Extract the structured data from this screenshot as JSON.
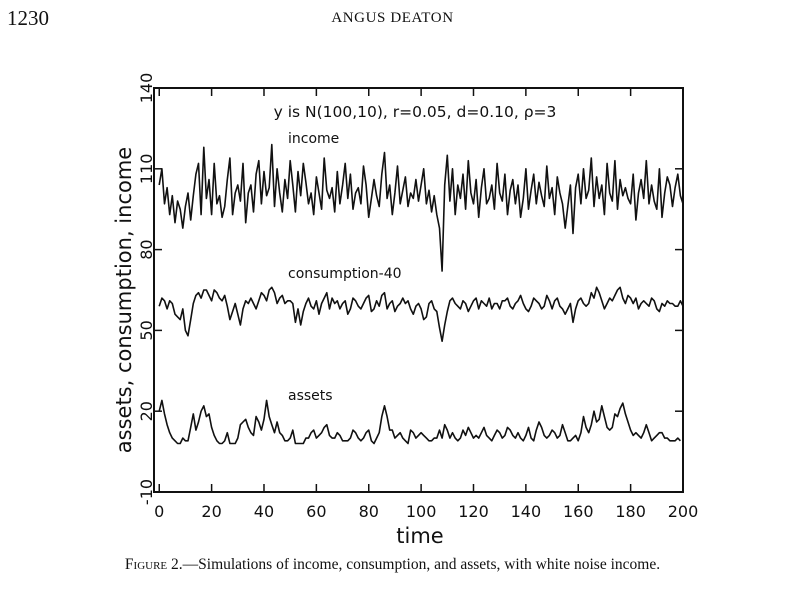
{
  "header": {
    "page_number": "1230",
    "running_head": "ANGUS DEATON"
  },
  "caption": {
    "label": "Figure 2.",
    "text": "—Simulations of income, consumption, and assets, with white noise income."
  },
  "chart_data": {
    "type": "line",
    "title": "y is N(100,10), r=0.05, d=0.10, ρ=3",
    "xlabel": "time",
    "ylabel": "assets, consumption, income",
    "xlim": [
      -2,
      200
    ],
    "ylim": [
      -10,
      140
    ],
    "x_ticks": [
      0,
      20,
      40,
      60,
      80,
      100,
      120,
      140,
      160,
      180,
      200
    ],
    "y_ticks": [
      -10,
      20,
      50,
      80,
      110,
      140
    ],
    "grid": false,
    "series": [
      {
        "name": "income",
        "label": "income",
        "values": [
          104,
          110,
          97,
          103,
          93,
          100,
          90,
          98,
          95,
          88,
          96,
          101,
          91,
          100,
          108,
          112,
          93,
          118,
          99,
          106,
          93,
          112,
          97,
          100,
          92,
          96,
          106,
          114,
          93,
          101,
          104,
          98,
          112,
          90,
          101,
          104,
          94,
          108,
          113,
          97,
          109,
          100,
          103,
          119,
          96,
          110,
          101,
          94,
          106,
          99,
          113,
          104,
          94,
          109,
          100,
          112,
          105,
          97,
          101,
          93,
          107,
          101,
          95,
          114,
          102,
          99,
          103,
          94,
          109,
          97,
          104,
          112,
          99,
          108,
          95,
          101,
          103,
          97,
          111,
          104,
          92,
          99,
          106,
          100,
          96,
          108,
          116,
          99,
          104,
          93,
          101,
          111,
          97,
          102,
          107,
          96,
          101,
          99,
          106,
          98,
          104,
          110,
          97,
          102,
          94,
          100,
          93,
          88,
          72,
          104,
          115,
          98,
          110,
          93,
          104,
          99,
          108,
          95,
          113,
          101,
          97,
          106,
          92,
          103,
          110,
          97,
          99,
          104,
          95,
          112,
          101,
          98,
          108,
          93,
          102,
          106,
          97,
          104,
          92,
          99,
          110,
          95,
          102,
          108,
          97,
          105,
          100,
          96,
          111,
          99,
          103,
          93,
          107,
          101,
          97,
          88,
          96,
          104,
          86,
          103,
          108,
          97,
          110,
          99,
          102,
          114,
          96,
          107,
          99,
          104,
          93,
          112,
          101,
          98,
          113,
          95,
          106,
          100,
          103,
          99,
          97,
          108,
          91,
          101,
          106,
          99,
          113,
          97,
          104,
          98,
          95,
          110,
          92,
          101,
          107,
          104,
          96,
          103,
          108,
          100,
          97
        ]
      },
      {
        "name": "consumption-40",
        "label": "consumption-40",
        "values": [
          59,
          62,
          61,
          58,
          61,
          60,
          56,
          55,
          54,
          58,
          50,
          48,
          54,
          60,
          63,
          64,
          62,
          65,
          65,
          63,
          61,
          65,
          64,
          62,
          61,
          63,
          59,
          54,
          57,
          60,
          56,
          52,
          58,
          61,
          60,
          62,
          60,
          58,
          61,
          64,
          63,
          61,
          65,
          66,
          64,
          60,
          62,
          63,
          60,
          61,
          61,
          60,
          53,
          58,
          52,
          57,
          60,
          62,
          59,
          58,
          61,
          56,
          60,
          62,
          64,
          58,
          62,
          60,
          61,
          58,
          60,
          61,
          56,
          58,
          62,
          61,
          59,
          58,
          60,
          62,
          63,
          57,
          58,
          61,
          59,
          63,
          64,
          58,
          60,
          61,
          57,
          59,
          60,
          62,
          60,
          61,
          58,
          56,
          59,
          60,
          58,
          54,
          55,
          60,
          61,
          58,
          57,
          51,
          46,
          52,
          57,
          61,
          62,
          60,
          59,
          58,
          61,
          60,
          57,
          59,
          61,
          62,
          58,
          61,
          60,
          59,
          62,
          58,
          60,
          60,
          58,
          61,
          61,
          62,
          59,
          58,
          60,
          61,
          63,
          60,
          58,
          57,
          59,
          62,
          61,
          60,
          58,
          59,
          63,
          61,
          58,
          61,
          62,
          59,
          58,
          56,
          58,
          60,
          53,
          58,
          61,
          62,
          60,
          59,
          60,
          64,
          62,
          66,
          64,
          61,
          58,
          60,
          62,
          61,
          63,
          65,
          66,
          62,
          60,
          63,
          62,
          60,
          62,
          58,
          60,
          61,
          60,
          59,
          62,
          61,
          58,
          57,
          60,
          59,
          61,
          60,
          60,
          59,
          59,
          61,
          59
        ]
      },
      {
        "name": "assets",
        "label": "assets",
        "values": [
          20,
          24,
          19,
          15,
          12,
          10,
          9,
          8,
          8,
          10,
          9,
          9,
          14,
          19,
          13,
          16,
          20,
          22,
          18,
          19,
          14,
          11,
          9,
          8,
          8,
          9,
          12,
          8,
          8,
          8,
          10,
          15,
          16,
          17,
          14,
          12,
          11,
          18,
          16,
          13,
          17,
          24,
          18,
          15,
          12,
          16,
          12,
          11,
          9,
          9,
          10,
          13,
          8,
          8,
          8,
          8,
          10,
          10,
          12,
          13,
          10,
          11,
          12,
          14,
          15,
          11,
          10,
          10,
          12,
          11,
          9,
          9,
          9,
          10,
          13,
          12,
          10,
          9,
          10,
          12,
          13,
          9,
          8,
          10,
          12,
          18,
          22,
          18,
          13,
          13,
          10,
          11,
          12,
          10,
          9,
          8,
          13,
          12,
          10,
          11,
          12,
          11,
          10,
          9,
          9,
          10,
          10,
          13,
          10,
          15,
          13,
          10,
          12,
          10,
          9,
          10,
          13,
          11,
          14,
          12,
          10,
          11,
          10,
          12,
          14,
          11,
          10,
          9,
          11,
          13,
          12,
          10,
          11,
          14,
          13,
          11,
          10,
          12,
          10,
          9,
          11,
          14,
          10,
          9,
          13,
          16,
          14,
          11,
          10,
          11,
          13,
          12,
          10,
          11,
          15,
          12,
          9,
          9,
          10,
          11,
          9,
          12,
          18,
          14,
          12,
          15,
          20,
          16,
          17,
          22,
          18,
          14,
          13,
          14,
          19,
          18,
          21,
          23,
          19,
          16,
          13,
          11,
          12,
          11,
          10,
          12,
          15,
          12,
          9,
          10,
          11,
          12,
          12,
          10,
          10,
          9,
          9,
          9,
          10,
          9
        ]
      }
    ]
  }
}
